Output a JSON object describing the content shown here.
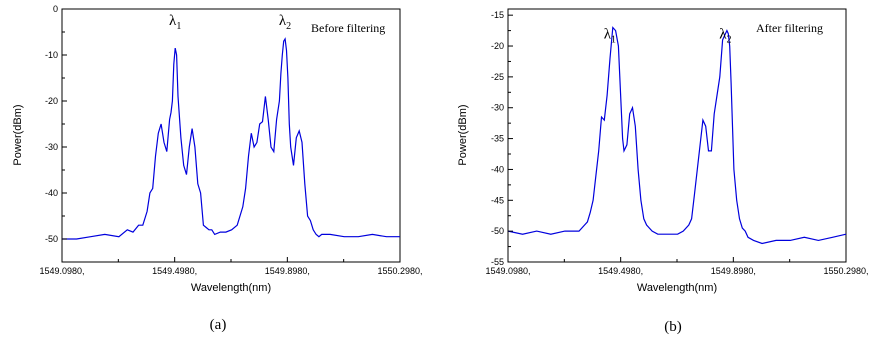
{
  "chart_data": [
    {
      "type": "line",
      "caption": "(a)",
      "annotation": "Before filtering",
      "xlabel": "Wavelength(nm)",
      "ylabel": "Power(dBm)",
      "xlim": [
        1549.098,
        1550.298
      ],
      "ylim": [
        -55,
        0
      ],
      "xticks": [
        {
          "value": 1549.098,
          "label": "1549.0980,"
        },
        {
          "value": 1549.498,
          "label": "1549.4980,"
        },
        {
          "value": 1549.898,
          "label": "1549.8980,"
        },
        {
          "value": 1550.298,
          "label": "1550.2980,"
        }
      ],
      "yticks": [
        {
          "value": 0,
          "label": "0"
        },
        {
          "value": -10,
          "label": "-10"
        },
        {
          "value": -20,
          "label": "-20"
        },
        {
          "value": -30,
          "label": "-30"
        },
        {
          "value": -40,
          "label": "-40"
        },
        {
          "value": -50,
          "label": "-50"
        }
      ],
      "peaks": [
        {
          "letter": "λ",
          "sub": "1",
          "x": 1549.478,
          "y": -3.5
        },
        {
          "letter": "λ",
          "sub": "2",
          "x": 1549.868,
          "y": -3.5
        }
      ],
      "series": [
        {
          "color": "#0000dd",
          "x": [
            1549.098,
            1549.15,
            1549.2,
            1549.25,
            1549.3,
            1549.33,
            1549.35,
            1549.37,
            1549.385,
            1549.4,
            1549.41,
            1549.42,
            1549.43,
            1549.44,
            1549.45,
            1549.46,
            1549.47,
            1549.48,
            1549.485,
            1549.49,
            1549.495,
            1549.5,
            1549.505,
            1549.51,
            1549.52,
            1549.53,
            1549.54,
            1549.55,
            1549.56,
            1549.57,
            1549.58,
            1549.59,
            1549.6,
            1549.61,
            1549.62,
            1549.63,
            1549.64,
            1549.66,
            1549.68,
            1549.7,
            1549.72,
            1549.74,
            1549.75,
            1549.76,
            1549.77,
            1549.78,
            1549.79,
            1549.8,
            1549.81,
            1549.82,
            1549.83,
            1549.84,
            1549.85,
            1549.86,
            1549.87,
            1549.875,
            1549.88,
            1549.885,
            1549.89,
            1549.895,
            1549.9,
            1549.905,
            1549.91,
            1549.92,
            1549.93,
            1549.94,
            1549.95,
            1549.96,
            1549.97,
            1549.98,
            1549.99,
            1550.0,
            1550.01,
            1550.02,
            1550.05,
            1550.1,
            1550.15,
            1550.2,
            1550.25,
            1550.298
          ],
          "y": [
            -50,
            -50,
            -49.5,
            -49,
            -49.5,
            -48,
            -48.5,
            -47,
            -47,
            -44,
            -40,
            -39,
            -32,
            -27,
            -25,
            -29,
            -31,
            -24,
            -22.5,
            -20,
            -12,
            -8.5,
            -10,
            -19,
            -28,
            -34,
            -36,
            -30,
            -26,
            -30,
            -38,
            -40,
            -47,
            -47.5,
            -48,
            -48,
            -49,
            -48.5,
            -48.5,
            -48,
            -47,
            -43,
            -39,
            -32,
            -27,
            -30,
            -29,
            -25,
            -24.5,
            -19,
            -24,
            -30,
            -31,
            -24,
            -20,
            -14,
            -10,
            -7,
            -6.5,
            -9,
            -15,
            -25,
            -30,
            -34,
            -28,
            -26.5,
            -29,
            -38,
            -45,
            -46,
            -48,
            -49,
            -49.5,
            -49,
            -49,
            -49.5,
            -49.5,
            -49,
            -49.5,
            -49.5
          ]
        }
      ]
    },
    {
      "type": "line",
      "caption": "(b)",
      "annotation": "After filtering",
      "xlabel": "Wavelength(nm)",
      "ylabel": "Power(dBm)",
      "xlim": [
        1549.098,
        1550.298
      ],
      "ylim": [
        -55,
        -14
      ],
      "xticks": [
        {
          "value": 1549.098,
          "label": "1549.0980,"
        },
        {
          "value": 1549.498,
          "label": "1549.4980,"
        },
        {
          "value": 1549.898,
          "label": "1549.8980,"
        },
        {
          "value": 1550.298,
          "label": "1550.2980,"
        }
      ],
      "yticks": [
        {
          "value": -15,
          "label": "-15"
        },
        {
          "value": -20,
          "label": "-20"
        },
        {
          "value": -25,
          "label": "-25"
        },
        {
          "value": -30,
          "label": "-30"
        },
        {
          "value": -35,
          "label": "-35"
        },
        {
          "value": -40,
          "label": "-40"
        },
        {
          "value": -45,
          "label": "-45"
        },
        {
          "value": -50,
          "label": "-50"
        },
        {
          "value": -55,
          "label": "-55"
        }
      ],
      "peaks": [
        {
          "letter": "λ",
          "sub": "1",
          "x": 1549.438,
          "y": -18.8
        },
        {
          "letter": "λ",
          "sub": "2",
          "x": 1549.848,
          "y": -18.8
        }
      ],
      "series": [
        {
          "color": "#0000dd",
          "x": [
            1549.098,
            1549.15,
            1549.2,
            1549.25,
            1549.3,
            1549.35,
            1549.37,
            1549.38,
            1549.39,
            1549.4,
            1549.41,
            1549.42,
            1549.43,
            1549.44,
            1549.45,
            1549.46,
            1549.47,
            1549.48,
            1549.49,
            1549.5,
            1549.505,
            1549.51,
            1549.52,
            1549.53,
            1549.54,
            1549.55,
            1549.56,
            1549.57,
            1549.58,
            1549.59,
            1549.6,
            1549.61,
            1549.63,
            1549.66,
            1549.7,
            1549.72,
            1549.74,
            1549.75,
            1549.76,
            1549.77,
            1549.78,
            1549.79,
            1549.8,
            1549.81,
            1549.82,
            1549.83,
            1549.84,
            1549.85,
            1549.86,
            1549.87,
            1549.875,
            1549.88,
            1549.885,
            1549.89,
            1549.9,
            1549.91,
            1549.92,
            1549.93,
            1549.94,
            1549.95,
            1549.97,
            1550.0,
            1550.05,
            1550.1,
            1550.15,
            1550.2,
            1550.25,
            1550.298
          ],
          "y": [
            -50,
            -50.5,
            -50,
            -50.5,
            -50,
            -50,
            -49,
            -48.5,
            -47,
            -45,
            -41,
            -37,
            -31.5,
            -32,
            -28,
            -22,
            -17,
            -17.5,
            -20,
            -30,
            -35,
            -37,
            -36,
            -31,
            -30,
            -33,
            -40,
            -45,
            -48,
            -49,
            -49.5,
            -50,
            -50.5,
            -50.5,
            -50.5,
            -50,
            -49,
            -48,
            -44,
            -40,
            -36,
            -32,
            -33,
            -37,
            -37,
            -31,
            -28,
            -25,
            -19,
            -18,
            -17.5,
            -18,
            -20,
            -26,
            -40,
            -45,
            -48,
            -49.5,
            -50,
            -51,
            -51.5,
            -52,
            -51.5,
            -51.5,
            -51,
            -51.5,
            -51,
            -50.5
          ]
        }
      ]
    }
  ]
}
